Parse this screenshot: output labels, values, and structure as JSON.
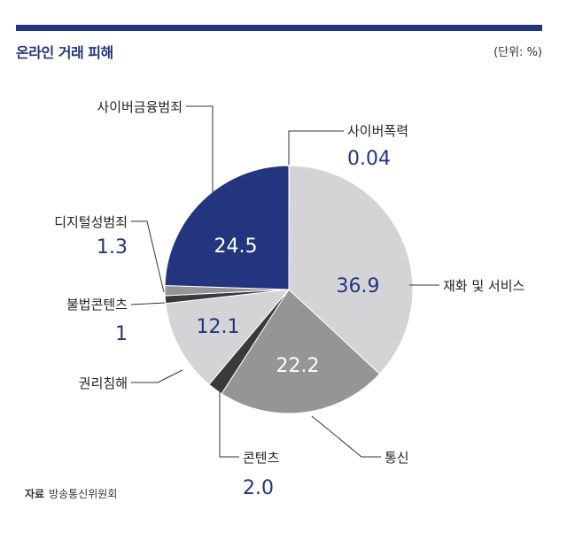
{
  "header": {
    "title": "온라인 거래 피해",
    "unit": "(단위: %)"
  },
  "source": {
    "label": "자료",
    "text": "방송통신위원회"
  },
  "colors": {
    "accent": "#23357f",
    "light_gray": "#d4d4d6",
    "mid_gray": "#959597",
    "dark_gray": "#3a3a3c"
  },
  "chart_data": {
    "type": "pie",
    "unit": "%",
    "slices": [
      {
        "label": "사이버폭력",
        "value": 0.04,
        "color": "#ffffff"
      },
      {
        "label": "재화 및 서비스",
        "value": 36.9,
        "color": "#d4d4d6"
      },
      {
        "label": "통신",
        "value": 22.2,
        "color": "#959597"
      },
      {
        "label": "콘텐츠",
        "value": 2.0,
        "color": "#3a3a3c"
      },
      {
        "label": "권리침해",
        "value": 12.1,
        "color": "#d4d4d6"
      },
      {
        "label": "불법콘텐츠",
        "value": 1.0,
        "color": "#3a3a3c"
      },
      {
        "label": "디지털성범죄",
        "value": 1.3,
        "color": "#959597"
      },
      {
        "label": "사이버금융범죄",
        "value": 24.5,
        "color": "#23357f"
      }
    ]
  }
}
